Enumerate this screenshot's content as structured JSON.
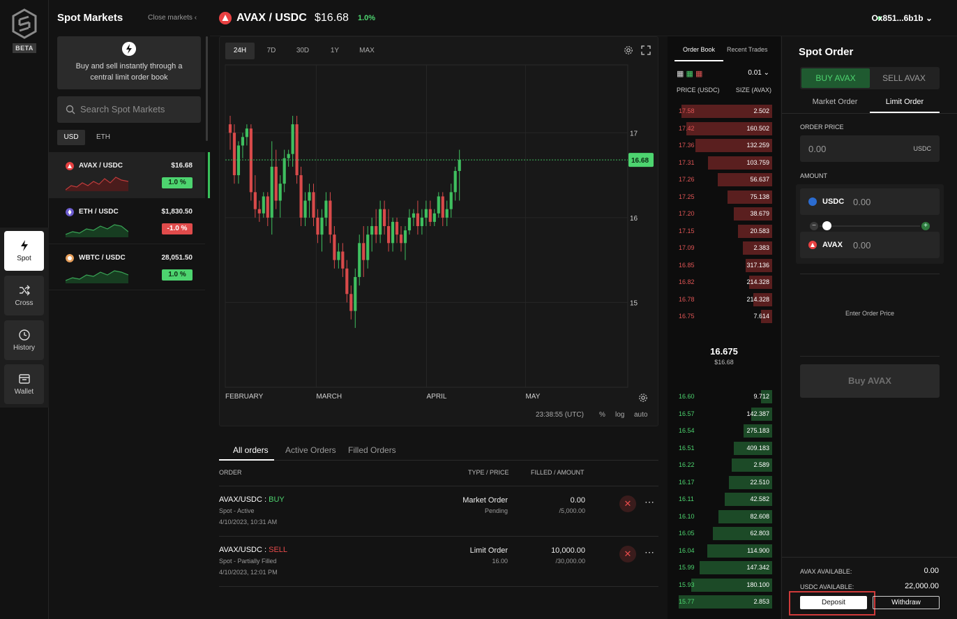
{
  "rail": {
    "beta": "BETA",
    "items": [
      {
        "label": "Spot",
        "icon": "bolt-icon"
      },
      {
        "label": "Cross",
        "icon": "shuffle-icon"
      },
      {
        "label": "History",
        "icon": "clock-icon"
      },
      {
        "label": "Wallet",
        "icon": "wallet-icon"
      }
    ]
  },
  "markets": {
    "title": "Spot Markets",
    "close_label": "Close markets",
    "promo": "Buy and sell instantly through a central limit order book",
    "search_placeholder": "Search Spot Markets",
    "currency_tabs": [
      "USD",
      "ETH"
    ],
    "rows": [
      {
        "pair": "AVAX / USDC",
        "price": "$16.68",
        "change": "1.0 %",
        "direction": "up"
      },
      {
        "pair": "ETH / USDC",
        "price": "$1,830.50",
        "change": "-1.0 %",
        "direction": "down"
      },
      {
        "pair": "WBTC / USDC",
        "price": "28,051.50",
        "change": "1.0 %",
        "direction": "up"
      }
    ]
  },
  "header": {
    "pair": "AVAX / USDC",
    "price": "$16.68",
    "change": "1.0%",
    "wallet": "Ox851...6b1b"
  },
  "chart": {
    "timeframes": [
      "24H",
      "7D",
      "30D",
      "1Y",
      "MAX"
    ],
    "active_timeframe": "24H",
    "footer": {
      "time": "23:38:55 (UTC)",
      "pct": "%",
      "log": "log",
      "auto": "auto"
    }
  },
  "chart_data": {
    "type": "candlestick",
    "x_ticks": [
      "FEBRUARY",
      "MARCH",
      "APRIL",
      "MAY"
    ],
    "y_ticks": [
      17.0,
      16.0,
      15.0
    ],
    "ylim": [
      14.0,
      17.8
    ],
    "last_price": 16.68,
    "last_label": "16.68",
    "candles": [
      [
        17.1,
        17.2,
        16.8,
        17.0
      ],
      [
        17.0,
        17.1,
        16.4,
        16.5
      ],
      [
        16.5,
        16.9,
        16.4,
        16.85
      ],
      [
        16.85,
        17.0,
        16.7,
        16.95
      ],
      [
        16.95,
        17.1,
        16.85,
        17.05
      ],
      [
        17.05,
        17.1,
        16.2,
        16.3
      ],
      [
        16.3,
        16.5,
        16.0,
        16.1
      ],
      [
        16.1,
        16.2,
        15.95,
        16.05
      ],
      [
        16.05,
        16.3,
        16.0,
        16.25
      ],
      [
        16.25,
        16.3,
        15.9,
        16.0
      ],
      [
        16.0,
        16.9,
        15.8,
        16.6
      ],
      [
        16.6,
        16.8,
        16.1,
        16.2
      ],
      [
        16.2,
        16.5,
        16.0,
        16.4
      ],
      [
        16.4,
        16.8,
        16.3,
        16.7
      ],
      [
        16.7,
        16.8,
        16.6,
        16.75
      ],
      [
        16.75,
        17.2,
        16.6,
        17.1
      ],
      [
        17.1,
        17.2,
        16.4,
        16.5
      ],
      [
        16.5,
        16.6,
        15.9,
        16.0
      ],
      [
        16.0,
        16.3,
        15.9,
        16.2
      ],
      [
        16.2,
        16.4,
        16.0,
        16.3
      ],
      [
        16.3,
        16.4,
        15.9,
        16.0
      ],
      [
        16.0,
        16.1,
        15.7,
        15.8
      ],
      [
        15.8,
        16.1,
        15.6,
        16.0
      ],
      [
        16.0,
        16.3,
        15.9,
        16.2
      ],
      [
        16.2,
        16.3,
        15.7,
        15.8
      ],
      [
        15.8,
        15.9,
        15.4,
        15.5
      ],
      [
        15.5,
        15.7,
        15.4,
        15.6
      ],
      [
        15.6,
        15.7,
        15.3,
        15.4
      ],
      [
        15.4,
        15.5,
        15.0,
        15.1
      ],
      [
        15.1,
        15.2,
        14.8,
        14.9
      ],
      [
        14.9,
        15.4,
        14.7,
        15.3
      ],
      [
        15.3,
        15.8,
        15.2,
        15.7
      ],
      [
        15.7,
        15.9,
        15.3,
        15.5
      ],
      [
        15.5,
        15.9,
        15.4,
        15.8
      ],
      [
        15.8,
        16.0,
        15.6,
        15.9
      ],
      [
        15.9,
        16.1,
        15.7,
        15.8
      ],
      [
        15.8,
        16.2,
        15.7,
        16.1
      ],
      [
        16.1,
        16.2,
        15.8,
        15.9
      ],
      [
        15.9,
        16.1,
        15.6,
        15.7
      ],
      [
        15.7,
        16.0,
        15.6,
        15.95
      ],
      [
        15.95,
        16.0,
        15.7,
        15.8
      ],
      [
        15.8,
        15.9,
        15.6,
        15.7
      ],
      [
        15.7,
        15.9,
        15.5,
        15.85
      ],
      [
        15.85,
        16.1,
        15.8,
        16.0
      ],
      [
        16.0,
        16.1,
        15.9,
        16.05
      ],
      [
        16.05,
        16.2,
        15.8,
        15.9
      ],
      [
        15.9,
        16.1,
        15.8,
        16.0
      ],
      [
        16.0,
        16.2,
        15.9,
        16.1
      ],
      [
        16.1,
        16.2,
        15.9,
        15.95
      ],
      [
        15.95,
        16.1,
        15.9,
        16.05
      ],
      [
        16.05,
        16.3,
        16.0,
        16.25
      ],
      [
        16.25,
        16.3,
        15.9,
        16.0
      ],
      [
        16.0,
        16.2,
        15.9,
        16.1
      ],
      [
        16.1,
        16.4,
        16.0,
        16.3
      ],
      [
        16.3,
        16.6,
        16.2,
        16.55
      ],
      [
        16.55,
        16.8,
        16.2,
        16.68
      ]
    ]
  },
  "orders": {
    "tabs": [
      "All orders",
      "Active Orders",
      "Filled Orders"
    ],
    "headers": {
      "order": "ORDER",
      "type": "TYPE / PRICE",
      "filled": "FILLED / AMOUNT"
    },
    "rows": [
      {
        "pair": "AVAX/USDC",
        "side": "BUY",
        "status": "Spot - Active",
        "date": "4/10/2023, 10:31 AM",
        "type": "Market Order",
        "price": "Pending",
        "filled": "0.00",
        "amount": "/5,000.00"
      },
      {
        "pair": "AVAX/USDC",
        "side": "SELL",
        "status": "Spot - Partially Filled",
        "date": "4/10/2023, 12:01 PM",
        "type": "Limit Order",
        "price": "16.00",
        "filled": "10,000.00",
        "amount": "/30,000.00"
      }
    ]
  },
  "book": {
    "tabs": [
      "Order Book",
      "Recent Trades"
    ],
    "tick": "0.01",
    "headers": {
      "price": "PRICE (USDC)",
      "size": "SIZE (AVAX)"
    },
    "asks": [
      {
        "p": "17.58",
        "s": "2.502",
        "d": 0.95
      },
      {
        "p": "17.42",
        "s": "160.502",
        "d": 0.9
      },
      {
        "p": "17.36",
        "s": "132.259",
        "d": 0.8
      },
      {
        "p": "17.31",
        "s": "103.759",
        "d": 0.67
      },
      {
        "p": "17.26",
        "s": "56.637",
        "d": 0.57
      },
      {
        "p": "17.25",
        "s": "75.138",
        "d": 0.47
      },
      {
        "p": "17.20",
        "s": "38.679",
        "d": 0.4
      },
      {
        "p": "17.15",
        "s": "20.583",
        "d": 0.36
      },
      {
        "p": "17.09",
        "s": "2.383",
        "d": 0.31
      },
      {
        "p": "16.85",
        "s": "317.136",
        "d": 0.28
      },
      {
        "p": "16.82",
        "s": "214.328",
        "d": 0.24
      },
      {
        "p": "16.78",
        "s": "214.328",
        "d": 0.2
      },
      {
        "p": "16.75",
        "s": "7.614",
        "d": 0.12
      }
    ],
    "mid": "16.675",
    "mid_usd": "$16.68",
    "bids": [
      {
        "p": "16.60",
        "s": "9.712",
        "d": 0.12
      },
      {
        "p": "16.57",
        "s": "142.387",
        "d": 0.22
      },
      {
        "p": "16.54",
        "s": "275.183",
        "d": 0.3
      },
      {
        "p": "16.51",
        "s": "409.183",
        "d": 0.4
      },
      {
        "p": "16.22",
        "s": "2.589",
        "d": 0.42
      },
      {
        "p": "16.17",
        "s": "22.510",
        "d": 0.45
      },
      {
        "p": "16.11",
        "s": "42.582",
        "d": 0.5
      },
      {
        "p": "16.10",
        "s": "82.608",
        "d": 0.56
      },
      {
        "p": "16.05",
        "s": "62.803",
        "d": 0.62
      },
      {
        "p": "16.04",
        "s": "114.900",
        "d": 0.68
      },
      {
        "p": "15.99",
        "s": "147.342",
        "d": 0.76
      },
      {
        "p": "15.93",
        "s": "180.100",
        "d": 0.85
      },
      {
        "p": "15.77",
        "s": "2.853",
        "d": 0.98
      }
    ]
  },
  "order_panel": {
    "title": "Spot Order",
    "buy_tab": "BUY AVAX",
    "sell_tab": "SELL AVAX",
    "market_tab": "Market Order",
    "limit_tab": "Limit Order",
    "order_price_label": "ORDER PRICE",
    "order_price_value": "0.00",
    "order_price_unit": "USDC",
    "amount_label": "AMOUNT",
    "usdc_label": "USDC",
    "usdc_value": "0.00",
    "avax_label": "AVAX",
    "avax_value": "0.00",
    "enter_price": "Enter Order Price",
    "buy_button": "Buy AVAX",
    "avax_available_label": "AVAX AVAILABLE:",
    "avax_available": "0.00",
    "usdc_available_label": "USDC AVAILABLE:",
    "usdc_available": "22,000.00",
    "deposit": "Deposit",
    "withdraw": "Withdraw"
  },
  "colors": {
    "accent_green": "#4dd46f",
    "accent_red": "#e84b4b",
    "avax_red": "#e84142"
  }
}
